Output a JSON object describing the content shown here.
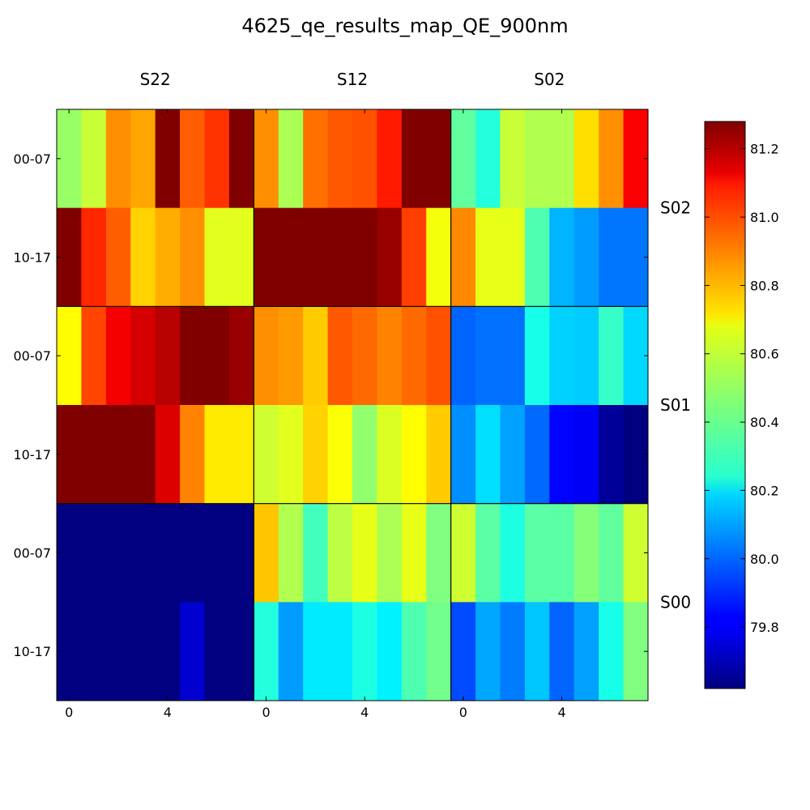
{
  "chart_data": {
    "type": "heatmap",
    "title": "4625_qe_results_map_QE_900nm",
    "column_labels": [
      "S22",
      "S12",
      "S02"
    ],
    "row_block_labels": [
      "S02",
      "S01",
      "S00"
    ],
    "y_tick_labels": [
      "00-07",
      "10-17",
      "00-07",
      "10-17",
      "00-07",
      "10-17"
    ],
    "x_tick_labels": [
      "0",
      "4",
      "0",
      "4",
      "0",
      "4"
    ],
    "colorbar": {
      "min": 79.62,
      "max": 81.28,
      "ticks": [
        79.8,
        80.0,
        80.2,
        80.4,
        80.6,
        80.8,
        81.0,
        81.2
      ],
      "tick_labels": [
        "79.8",
        "80.0",
        "80.2",
        "80.4",
        "80.6",
        "80.8",
        "81.0",
        "81.2"
      ],
      "colormap": "jet"
    },
    "grid_columns_per_block": 8,
    "rows": [
      [
        80.49,
        80.57,
        80.84,
        80.8,
        81.28,
        80.92,
        80.99,
        81.28,
        80.84,
        80.52,
        80.89,
        80.93,
        80.94,
        81.03,
        81.28,
        81.28,
        80.4,
        80.3,
        80.57,
        80.53,
        80.53,
        80.71,
        80.84,
        81.08
      ],
      [
        81.28,
        81.01,
        80.92,
        80.73,
        80.79,
        80.84,
        80.61,
        80.61,
        81.28,
        81.28,
        81.28,
        81.28,
        81.28,
        81.24,
        80.97,
        80.64,
        80.85,
        80.62,
        80.62,
        80.37,
        80.12,
        80.08,
        80.02,
        80.02
      ],
      [
        80.66,
        80.96,
        81.09,
        81.14,
        81.19,
        81.28,
        81.28,
        81.24,
        80.84,
        80.82,
        80.74,
        80.93,
        80.9,
        80.86,
        80.9,
        80.94,
        79.99,
        80.01,
        80.01,
        80.28,
        80.17,
        80.16,
        80.33,
        80.18
      ],
      [
        81.28,
        81.28,
        81.28,
        81.28,
        81.13,
        80.86,
        80.69,
        80.69,
        80.58,
        80.61,
        80.73,
        80.65,
        80.48,
        80.6,
        80.66,
        80.74,
        80.06,
        80.19,
        80.09,
        80.0,
        79.83,
        79.81,
        79.66,
        79.62
      ],
      [
        79.62,
        79.62,
        79.62,
        79.62,
        79.62,
        79.62,
        79.62,
        79.62,
        80.75,
        80.53,
        80.35,
        80.55,
        80.62,
        80.52,
        80.62,
        80.45,
        80.58,
        80.39,
        80.29,
        80.39,
        80.39,
        80.46,
        80.4,
        80.58
      ],
      [
        79.62,
        79.62,
        79.62,
        79.62,
        79.62,
        79.75,
        79.62,
        79.62,
        80.3,
        80.08,
        80.21,
        80.21,
        80.29,
        80.22,
        80.37,
        80.43,
        79.95,
        80.1,
        80.03,
        80.15,
        79.99,
        80.09,
        80.28,
        80.45
      ]
    ]
  }
}
